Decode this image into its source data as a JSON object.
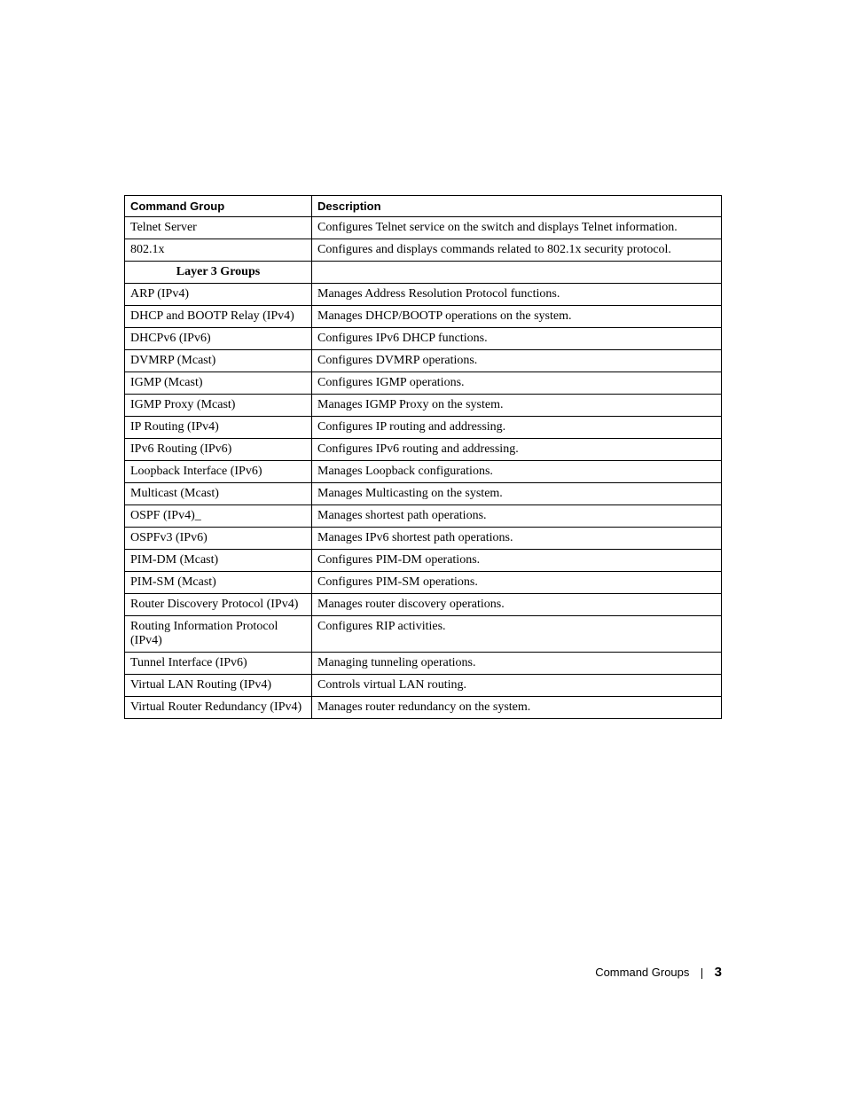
{
  "table": {
    "headers": {
      "col1": "Command Group",
      "col2": "Description"
    },
    "section_label": "Layer 3 Groups",
    "rows": [
      {
        "group": "Telnet Server",
        "desc": "Configures Telnet service on the switch and displays Telnet information."
      },
      {
        "group": "802.1x",
        "desc": "Configures and displays commands related to 802.1x security protocol."
      },
      {
        "section": true
      },
      {
        "group": "ARP (IPv4)",
        "desc": "Manages Address Resolution Protocol functions."
      },
      {
        "group": "DHCP and BOOTP Relay (IPv4)",
        "desc": "Manages DHCP/BOOTP operations on the system."
      },
      {
        "group": "DHCPv6 (IPv6)",
        "desc": "Configures IPv6 DHCP functions."
      },
      {
        "group": "DVMRP (Mcast)",
        "desc": "Configures DVMRP operations."
      },
      {
        "group": "IGMP (Mcast)",
        "desc": "Configures IGMP operations."
      },
      {
        "group": "IGMP Proxy (Mcast)",
        "desc": "Manages IGMP Proxy on the system."
      },
      {
        "group": "IP Routing (IPv4)",
        "desc": "Configures IP routing and addressing."
      },
      {
        "group": "IPv6 Routing (IPv6)",
        "desc": "Configures IPv6 routing and addressing."
      },
      {
        "group": "Loopback Interface (IPv6)",
        "desc": "Manages Loopback configurations."
      },
      {
        "group": "Multicast (Mcast)",
        "desc": "Manages Multicasting on the system."
      },
      {
        "group": "OSPF (IPv4)_",
        "desc": "Manages shortest path operations."
      },
      {
        "group": "OSPFv3 (IPv6)",
        "desc": "Manages IPv6 shortest path operations."
      },
      {
        "group": "PIM-DM (Mcast)",
        "desc": "Configures PIM-DM operations."
      },
      {
        "group": "PIM-SM (Mcast)",
        "desc": "Configures PIM-SM operations."
      },
      {
        "group": "Router Discovery Protocol (IPv4)",
        "desc": "Manages router discovery operations."
      },
      {
        "group": "Routing Information Protocol (IPv4)",
        "desc": "Configures RIP activities."
      },
      {
        "group": "Tunnel Interface (IPv6)",
        "desc": "Managing tunneling operations."
      },
      {
        "group": "Virtual LAN Routing (IPv4)",
        "desc": "Controls virtual LAN routing."
      },
      {
        "group": "Virtual Router Redundancy (IPv4)",
        "desc": "Manages router redundancy on the system."
      }
    ]
  },
  "footer": {
    "title": "Command Groups",
    "page": "3"
  }
}
